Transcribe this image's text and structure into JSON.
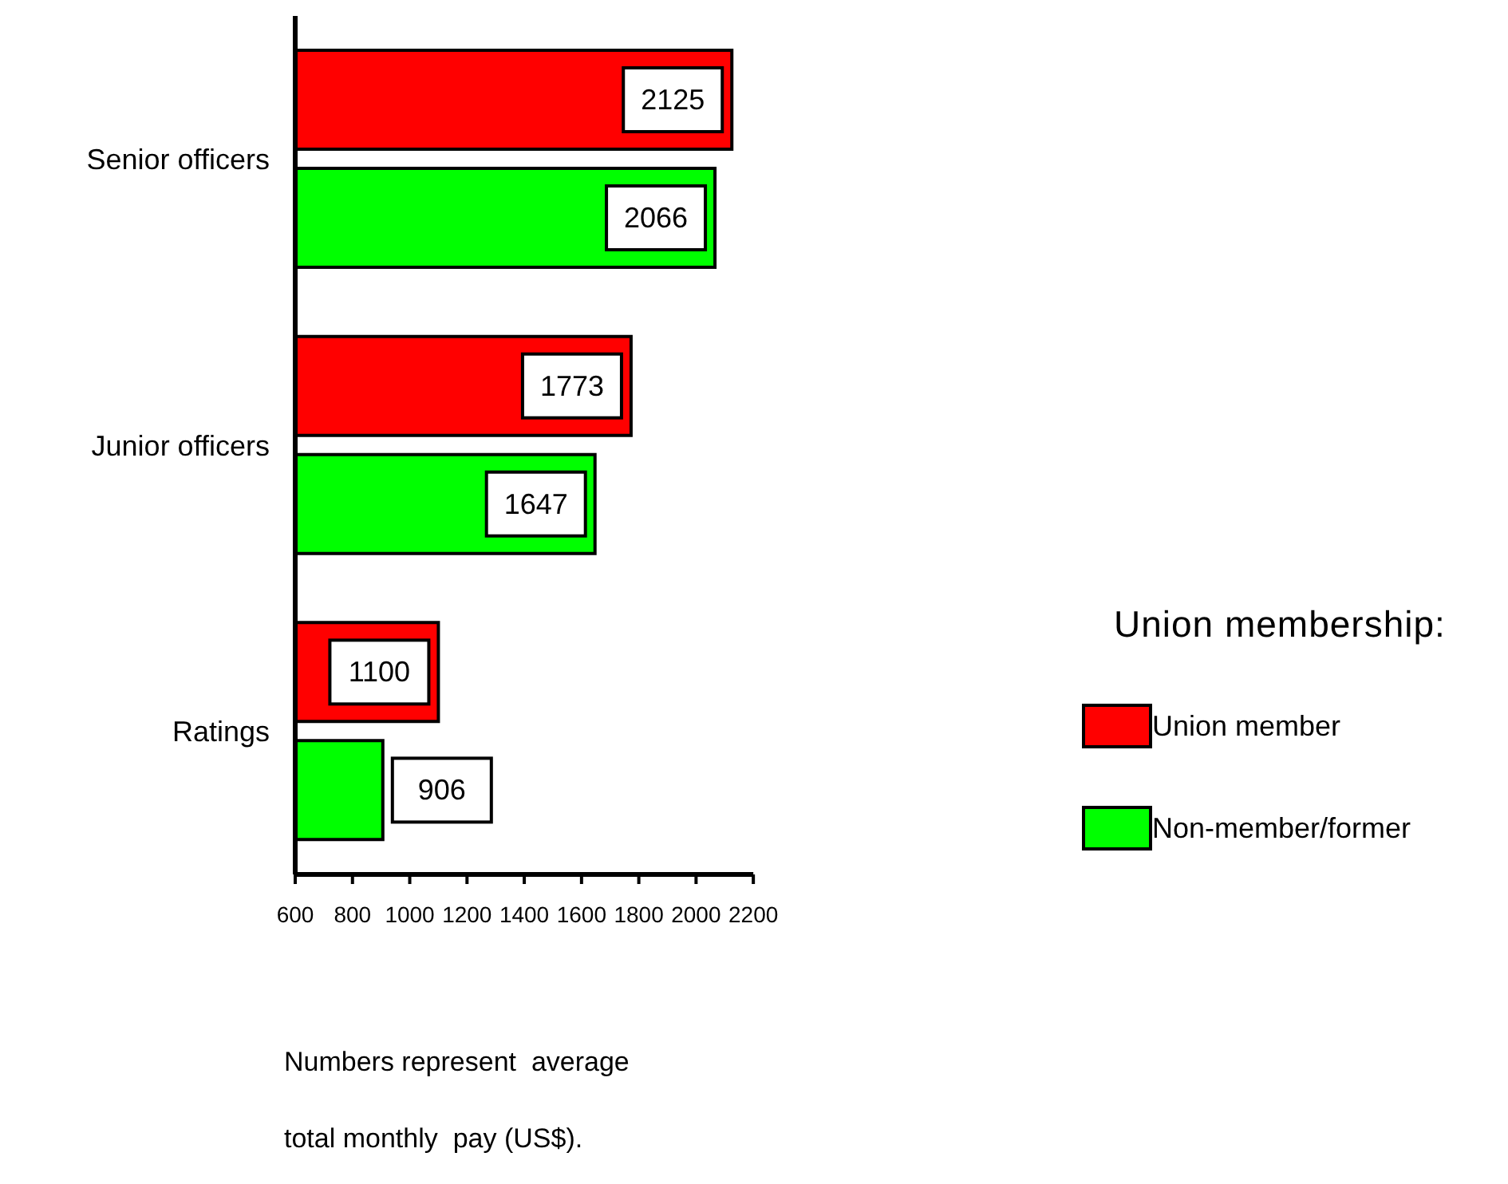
{
  "chart_data": {
    "type": "bar",
    "orientation": "horizontal",
    "categories": [
      "Senior officers",
      "Junior officers",
      "Ratings"
    ],
    "series": [
      {
        "name": "Union member",
        "color": "#ff0000",
        "values": [
          2125,
          1773,
          1100
        ]
      },
      {
        "name": "Non-member/former",
        "color": "#00ff00",
        "values": [
          2066,
          1647,
          906
        ]
      }
    ],
    "xlim": [
      600,
      2200
    ],
    "xticks": [
      600,
      800,
      1000,
      1200,
      1400,
      1600,
      1800,
      2000,
      2200
    ],
    "data_labels": true,
    "legend": "right",
    "legend_title": "Union membership:",
    "grid": false,
    "annotations": [
      "Numbers represent  average",
      "total monthly  pay (US$)."
    ]
  }
}
